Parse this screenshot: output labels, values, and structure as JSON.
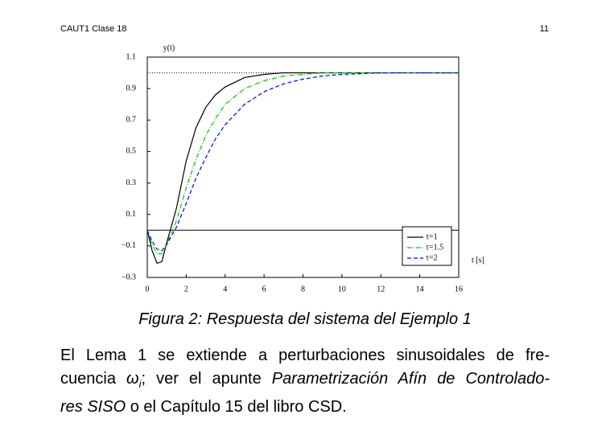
{
  "header": {
    "left": "CAUT1 Clase 18",
    "right": "11"
  },
  "chart_data": {
    "type": "line",
    "ylabel": "y(t)",
    "xlabel": "t [s]",
    "xlim": [
      0,
      16
    ],
    "xticks": [
      0,
      2,
      4,
      6,
      8,
      10,
      12,
      14,
      16
    ],
    "ylim": [
      -0.3,
      1.1
    ],
    "yticks": [
      {
        "value": -0.3,
        "label": "−0.3"
      },
      {
        "value": -0.1,
        "label": "−0.1"
      },
      0.1,
      0.3,
      0.5,
      0.7,
      0.9,
      1.1
    ],
    "reference_lines": [
      {
        "value": 1,
        "style": "dotted"
      },
      {
        "value": 0,
        "style": "solid"
      }
    ],
    "legend": "lower right",
    "x": [
      0,
      0.25,
      0.5,
      0.75,
      1,
      1.5,
      2,
      2.5,
      3,
      3.5,
      4,
      5,
      6,
      7,
      8,
      9,
      10,
      12,
      14,
      16
    ],
    "series": [
      {
        "name": "τ=1",
        "color": "#000000",
        "dash": "solid",
        "values": [
          0,
          -0.13,
          -0.21,
          -0.2,
          -0.08,
          0.14,
          0.44,
          0.65,
          0.78,
          0.86,
          0.91,
          0.97,
          0.99,
          1.0,
          1.0,
          1.0,
          1.0,
          1.0,
          1.0,
          1.0
        ]
      },
      {
        "name": "τ=1.5",
        "color": "#00c800",
        "dash": "dashdot",
        "values": [
          0,
          -0.09,
          -0.15,
          -0.15,
          -0.09,
          0.06,
          0.27,
          0.45,
          0.6,
          0.71,
          0.8,
          0.9,
          0.95,
          0.98,
          0.99,
          1.0,
          1.0,
          1.0,
          1.0,
          1.0
        ]
      },
      {
        "name": "τ=2",
        "color": "#0000ff",
        "dash": "dashed",
        "values": [
          0,
          -0.07,
          -0.12,
          -0.13,
          -0.09,
          0.02,
          0.17,
          0.33,
          0.46,
          0.58,
          0.67,
          0.8,
          0.88,
          0.93,
          0.96,
          0.98,
          0.99,
          1.0,
          1.0,
          1.0
        ]
      }
    ]
  },
  "caption": "Figura 2: Respuesta del sistema del Ejemplo 1",
  "paragraph": [
    [
      {
        "text": "El Lema 1 se extiende a perturbaciones sinusoidales de fre-",
        "style": "normal"
      }
    ],
    [
      {
        "text": "cuencia ",
        "style": "normal"
      },
      {
        "text": "ω",
        "style": "italic"
      },
      {
        "text": "i",
        "style": "sub"
      },
      {
        "text": "; ver el apunte ",
        "style": "normal"
      },
      {
        "text": "Parametrización Afín de Controlado-",
        "style": "italic"
      }
    ],
    [
      {
        "text": "res SISO",
        "style": "italic"
      },
      {
        "text": " o el Capítulo 15 del libro CSD.",
        "style": "normal"
      }
    ]
  ]
}
